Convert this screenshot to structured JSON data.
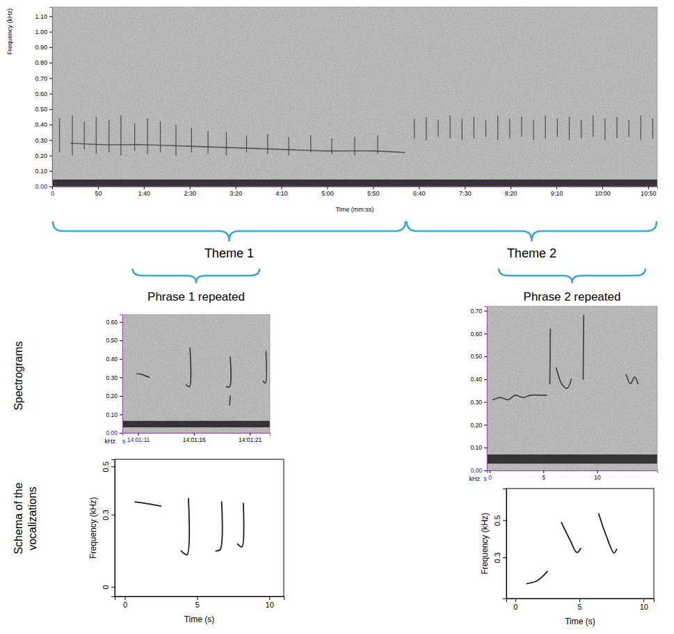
{
  "chart_data": [
    {
      "type": "spectrogram",
      "x_label": "Time (mm:ss)",
      "y_label": "Frequency (kHz)",
      "xlim": [
        0,
        660
      ],
      "ylim": [
        0,
        1.16
      ],
      "xticks": [
        0,
        50,
        {
          "value": 100,
          "label": "1:40"
        },
        {
          "value": 150,
          "label": "2:30"
        },
        {
          "value": 200,
          "label": "3:20"
        },
        {
          "value": 250,
          "label": "4:10"
        },
        {
          "value": 300,
          "label": "5:00"
        },
        {
          "value": 350,
          "label": "5:50"
        },
        {
          "value": 400,
          "label": "6:40"
        },
        {
          "value": 450,
          "label": "7:30"
        },
        {
          "value": 500,
          "label": "8:20"
        },
        {
          "value": 550,
          "label": "9:10"
        },
        {
          "value": 600,
          "label": "10:00"
        },
        {
          "value": 650,
          "label": "10:50"
        }
      ],
      "yticks": [
        {
          "value": 0,
          "label": "0.00"
        },
        {
          "value": 0.1,
          "label": "0.10"
        },
        {
          "value": 0.2,
          "label": "0.20"
        },
        {
          "value": 0.3,
          "label": "0.30"
        },
        {
          "value": 0.4,
          "label": "0.40"
        },
        {
          "value": 0.5,
          "label": "0.50"
        },
        {
          "value": 0.6,
          "label": "0.60"
        },
        {
          "value": 0.7,
          "label": "0.70"
        },
        {
          "value": 0.8,
          "label": "0.80"
        },
        {
          "value": 0.9,
          "label": "0.90"
        },
        {
          "value": 1.0,
          "label": "1.00"
        },
        {
          "value": 1.1,
          "label": "1.10"
        }
      ],
      "noise_band": [
        0,
        0.045
      ],
      "streaks": {
        "t": [
          8,
          22,
          35,
          48,
          62,
          75,
          90,
          104,
          118,
          135,
          152,
          170,
          190,
          212,
          235,
          258,
          282,
          305,
          330,
          355,
          395,
          408,
          421,
          434,
          447,
          460,
          473,
          486,
          499,
          512,
          525,
          538,
          551,
          564,
          577,
          590,
          603,
          616,
          629,
          642,
          655
        ],
        "f_low": [
          0.22,
          0.2,
          0.24,
          0.21,
          0.22,
          0.2,
          0.23,
          0.21,
          0.22,
          0.2,
          0.22,
          0.21,
          0.2,
          0.22,
          0.21,
          0.2,
          0.22,
          0.21,
          0.2,
          0.21,
          0.31,
          0.3,
          0.32,
          0.31,
          0.3,
          0.31,
          0.32,
          0.3,
          0.31,
          0.32,
          0.3,
          0.31,
          0.32,
          0.3,
          0.31,
          0.32,
          0.3,
          0.31,
          0.32,
          0.3,
          0.31
        ],
        "f_high": [
          0.44,
          0.46,
          0.42,
          0.45,
          0.43,
          0.46,
          0.41,
          0.44,
          0.42,
          0.4,
          0.38,
          0.36,
          0.35,
          0.33,
          0.34,
          0.32,
          0.33,
          0.31,
          0.32,
          0.33,
          0.44,
          0.45,
          0.43,
          0.46,
          0.44,
          0.45,
          0.43,
          0.46,
          0.44,
          0.45,
          0.43,
          0.46,
          0.44,
          0.45,
          0.43,
          0.46,
          0.44,
          0.45,
          0.43,
          0.46,
          0.44
        ]
      },
      "tonal": {
        "t": [
          20,
          60,
          100,
          150,
          200,
          250,
          300,
          350,
          385
        ],
        "f": [
          0.28,
          0.27,
          0.27,
          0.26,
          0.25,
          0.24,
          0.23,
          0.23,
          0.22
        ]
      },
      "themes": [
        {
          "label": "Theme 1",
          "start": 0,
          "end": 386
        },
        {
          "label": "Theme 2",
          "start": 386,
          "end": 660
        }
      ]
    },
    {
      "type": "spectrogram",
      "title": "Phrase 1 repeated",
      "x_label": "s",
      "y_label": "kHz",
      "xlim": [
        -1.4,
        11.8
      ],
      "ylim": [
        0,
        0.64
      ],
      "xticks": [
        {
          "value": 0,
          "label": "14:01:11"
        },
        {
          "value": 5,
          "label": "14:01:16"
        },
        {
          "value": 10,
          "label": "14:01:21"
        }
      ],
      "yticks": [
        {
          "value": 0,
          "label": "0.00"
        },
        {
          "value": 0.1,
          "label": "0.10"
        },
        {
          "value": 0.2,
          "label": "0.20"
        },
        {
          "value": 0.3,
          "label": "0.30"
        },
        {
          "value": 0.4,
          "label": "0.40"
        },
        {
          "value": 0.5,
          "label": "0.50"
        },
        {
          "value": 0.6,
          "label": "0.60"
        }
      ],
      "noise_band": [
        0.03,
        0.065
      ],
      "units": [
        {
          "t": [
            -0.1,
            0.4,
            1.0
          ],
          "f": [
            0.32,
            0.315,
            0.3
          ]
        },
        {
          "t": [
            4.3,
            4.6,
            4.65
          ],
          "f": [
            0.26,
            0.25,
            0.46
          ]
        },
        {
          "t": [
            7.9,
            8.2,
            8.25
          ],
          "f": [
            0.25,
            0.25,
            0.41
          ]
        },
        {
          "t": [
            8.2,
            8.25
          ],
          "f": [
            0.15,
            0.2
          ]
        },
        {
          "t": [
            11.2,
            11.4,
            11.45
          ],
          "f": [
            0.28,
            0.27,
            0.44
          ]
        }
      ]
    },
    {
      "type": "spectrogram",
      "title": "Phrase 2 repeated",
      "x_label": "s",
      "y_label": "kHz",
      "xlim": [
        -0.26,
        15.6
      ],
      "ylim": [
        0,
        0.72
      ],
      "xticks": [
        0,
        5,
        10
      ],
      "yticks": [
        {
          "value": 0,
          "label": "0.00"
        },
        {
          "value": 0.1,
          "label": "0.10"
        },
        {
          "value": 0.2,
          "label": "0.20"
        },
        {
          "value": 0.3,
          "label": "0.30"
        },
        {
          "value": 0.4,
          "label": "0.40"
        },
        {
          "value": 0.5,
          "label": "0.50"
        },
        {
          "value": 0.6,
          "label": "0.60"
        },
        {
          "value": 0.7,
          "label": "0.70"
        }
      ],
      "noise_band": [
        0.03,
        0.07
      ],
      "units": [
        {
          "t": [
            0.3,
            1.0,
            1.7,
            2.4,
            3.1,
            3.8,
            4.6,
            5.3
          ],
          "f": [
            0.31,
            0.32,
            0.31,
            0.33,
            0.32,
            0.33,
            0.33,
            0.33
          ]
        },
        {
          "t": [
            5.6,
            5.65
          ],
          "f": [
            0.38,
            0.62
          ]
        },
        {
          "t": [
            6.2,
            6.7,
            7.2,
            7.6
          ],
          "f": [
            0.45,
            0.38,
            0.36,
            0.4
          ]
        },
        {
          "t": [
            8.7,
            8.75
          ],
          "f": [
            0.4,
            0.68
          ]
        },
        {
          "t": [
            12.7,
            13.1,
            13.5,
            13.8
          ],
          "f": [
            0.42,
            0.38,
            0.41,
            0.38
          ]
        }
      ]
    },
    {
      "type": "schema",
      "x_label": "Time (s)",
      "y_label": "Frequency (kHz)",
      "xlim": [
        -0.7,
        11.0
      ],
      "ylim": [
        -0.04,
        0.53
      ],
      "xticks": [
        0,
        5,
        10
      ],
      "yticks": [
        0,
        0.3,
        0.5
      ],
      "segments": [
        {
          "t": [
            0.7,
            1.6,
            2.5
          ],
          "f": [
            0.353,
            0.345,
            0.335
          ]
        },
        {
          "t": [
            3.9,
            4.3,
            4.4
          ],
          "f": [
            0.149,
            0.134,
            0.367
          ]
        },
        {
          "t": [
            6.3,
            6.6,
            6.7
          ],
          "f": [
            0.149,
            0.155,
            0.353
          ]
        },
        {
          "t": [
            7.8,
            8.1,
            8.2
          ],
          "f": [
            0.178,
            0.166,
            0.347
          ]
        }
      ]
    },
    {
      "type": "schema",
      "x_label": "Time (s)",
      "y_label": "Frequency (kHz)",
      "xlim": [
        -0.7,
        10.8
      ],
      "ylim": [
        0.08,
        0.67
      ],
      "xticks": [
        0,
        5,
        10
      ],
      "yticks": [
        0.3,
        0.5
      ],
      "segments": [
        {
          "t": [
            0.9,
            1.7,
            2.5
          ],
          "f": [
            0.16,
            0.175,
            0.225
          ]
        },
        {
          "t": [
            3.6,
            4.3,
            4.8,
            5.1
          ],
          "f": [
            0.487,
            0.389,
            0.327,
            0.349
          ]
        },
        {
          "t": [
            6.5,
            7.1,
            7.7,
            7.9
          ],
          "f": [
            0.535,
            0.415,
            0.324,
            0.345
          ]
        }
      ]
    }
  ],
  "row_labels": [
    "Spectrograms",
    "Schema of the vocalizations"
  ]
}
